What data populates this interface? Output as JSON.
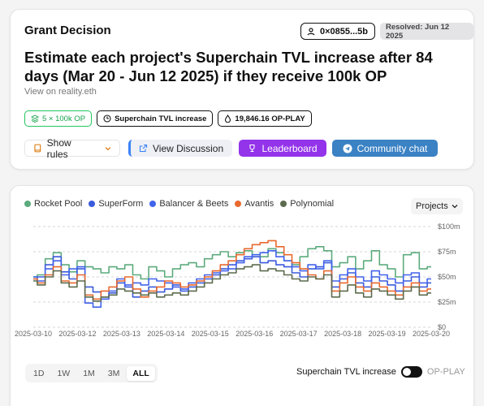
{
  "header": {
    "title": "Grant Decision",
    "address": "0×0855...5b",
    "resolved": "Resolved: Jun 12 2025"
  },
  "question": {
    "text": "Estimate each project's Superchain TVL increase after 84 days (Mar 20 - Jun 12 2025) if they receive 100k OP",
    "link": "View on reality.eth"
  },
  "tags": {
    "grant": "5 × 100k OP",
    "metric": "Superchain TVL increase",
    "pool": "19,846.16 OP-PLAY"
  },
  "buttons": {
    "rules": "Show rules",
    "discussion": "View Discussion",
    "leaderboard": "Leaderboard",
    "community": "Community chat"
  },
  "chart_controls": {
    "projects_label": "Projects",
    "ranges": [
      "1D",
      "1W",
      "1M",
      "3M",
      "ALL"
    ],
    "active_range": "ALL",
    "toggle_label": "Superchain TVL increase",
    "toggle_off_label": "OP-PLAY"
  },
  "colors": {
    "rocket_pool": "#5cab7d",
    "superform": "#3b5bdb",
    "balancer": "#4263eb",
    "avantis": "#e8692f",
    "polynomial": "#5c6b4e"
  },
  "chart_data": {
    "type": "line",
    "ylim": [
      0,
      100
    ],
    "y_ticks": [
      "$0",
      "$25m",
      "$50m",
      "$75m",
      "$100m"
    ],
    "x_ticks": [
      "2025-03-10",
      "2025-03-12",
      "2025-03-13",
      "2025-03-14",
      "2025-03-15",
      "2025-03-16",
      "2025-03-17",
      "2025-03-18",
      "2025-03-19",
      "2025-03-20"
    ],
    "series": [
      {
        "name": "Rocket Pool",
        "color": "#5cab7d",
        "values": [
          50,
          52,
          68,
          74,
          62,
          55,
          66,
          60,
          58,
          54,
          60,
          58,
          62,
          52,
          48,
          60,
          56,
          50,
          58,
          62,
          64,
          60,
          68,
          72,
          75,
          70,
          74,
          76,
          72,
          70,
          78,
          74,
          66,
          62,
          70,
          78,
          80,
          76,
          60,
          64,
          70,
          58,
          66,
          76,
          62,
          58,
          50,
          72,
          74,
          58,
          60
        ]
      },
      {
        "name": "SuperForm",
        "color": "#3b5bdb",
        "values": [
          48,
          50,
          62,
          70,
          55,
          48,
          58,
          40,
          35,
          30,
          34,
          44,
          40,
          30,
          36,
          40,
          35,
          38,
          42,
          36,
          40,
          44,
          48,
          52,
          58,
          62,
          66,
          68,
          70,
          64,
          66,
          62,
          60,
          54,
          50,
          58,
          60,
          64,
          40,
          48,
          54,
          44,
          40,
          50,
          46,
          42,
          36,
          46,
          50,
          40,
          44
        ]
      },
      {
        "name": "Balancer & Beets",
        "color": "#4263eb",
        "values": [
          50,
          46,
          58,
          66,
          52,
          58,
          60,
          24,
          20,
          28,
          36,
          48,
          42,
          44,
          42,
          48,
          46,
          44,
          40,
          38,
          44,
          48,
          52,
          54,
          56,
          58,
          64,
          70,
          72,
          74,
          76,
          70,
          66,
          60,
          56,
          62,
          58,
          66,
          46,
          52,
          58,
          50,
          46,
          56,
          52,
          48,
          44,
          52,
          54,
          44,
          48
        ]
      },
      {
        "name": "Avantis",
        "color": "#e8692f",
        "values": [
          48,
          44,
          52,
          60,
          46,
          44,
          52,
          32,
          28,
          36,
          40,
          46,
          50,
          38,
          30,
          36,
          40,
          46,
          44,
          40,
          42,
          46,
          50,
          56,
          62,
          66,
          72,
          78,
          82,
          84,
          86,
          80,
          72,
          64,
          58,
          52,
          48,
          56,
          36,
          44,
          50,
          40,
          36,
          44,
          40,
          36,
          32,
          40,
          44,
          36,
          38
        ]
      },
      {
        "name": "Polynomial",
        "color": "#5c6b4e",
        "values": [
          46,
          42,
          50,
          56,
          44,
          40,
          46,
          30,
          26,
          30,
          32,
          38,
          36,
          34,
          32,
          34,
          30,
          32,
          34,
          32,
          36,
          40,
          44,
          48,
          52,
          54,
          58,
          60,
          62,
          56,
          58,
          56,
          52,
          48,
          46,
          50,
          48,
          52,
          30,
          36,
          42,
          34,
          30,
          38,
          36,
          32,
          28,
          36,
          40,
          32,
          34
        ]
      }
    ]
  }
}
